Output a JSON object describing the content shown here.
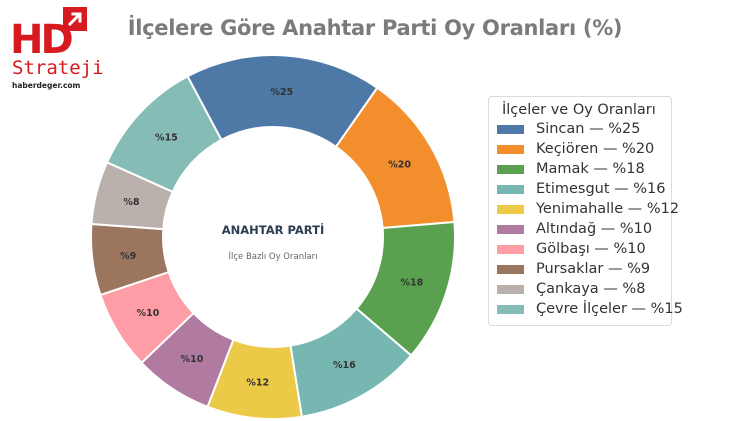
{
  "logo": {
    "mark": "HD",
    "name": "Strateji",
    "domain": "haberdeger.com",
    "color": "#d71920",
    "icon": "arrow-up-right-icon"
  },
  "chart_data": {
    "type": "pie",
    "title": "İlçelere Göre Anahtar Parti Oy Oranları (%)",
    "center_title": "ANAHTAR PARTİ",
    "center_subtitle": "İlçe Bazlı Oy Oranları",
    "legend_title": "İlçeler ve Oy Oranları",
    "legend_position": "right",
    "donut": true,
    "slices": [
      {
        "label": "Sincan",
        "value": 25,
        "data_label": "%25",
        "legend": "Sincan — %25",
        "color": "#4e79a7"
      },
      {
        "label": "Keçiören",
        "value": 20,
        "data_label": "%20",
        "legend": "Keçiören — %20",
        "color": "#f28e2b"
      },
      {
        "label": "Mamak",
        "value": 18,
        "data_label": "%18",
        "legend": "Mamak — %18",
        "color": "#59a14f"
      },
      {
        "label": "Etimesgut",
        "value": 16,
        "data_label": "%16",
        "legend": "Etimesgut — %16",
        "color": "#76b7b2"
      },
      {
        "label": "Yenimahalle",
        "value": 12,
        "data_label": "%12",
        "legend": "Yenimahalle — %12",
        "color": "#edc948"
      },
      {
        "label": "Altındağ",
        "value": 10,
        "data_label": "%10",
        "legend": "Altındağ — %10",
        "color": "#b07aa1"
      },
      {
        "label": "Gölbaşı",
        "value": 10,
        "data_label": "%10",
        "legend": "Gölbaşı — %10",
        "color": "#ff9da7"
      },
      {
        "label": "Pursaklar",
        "value": 9,
        "data_label": "%9",
        "legend": "Pursaklar — %9",
        "color": "#9c755f"
      },
      {
        "label": "Çankaya",
        "value": 8,
        "data_label": "%8",
        "legend": "Çankaya — %8",
        "color": "#bab0ac"
      },
      {
        "label": "Çevre İlçeler",
        "value": 15,
        "data_label": "%15",
        "legend": "Çevre İlçeler — %15",
        "color": "#86bcb6"
      }
    ]
  }
}
